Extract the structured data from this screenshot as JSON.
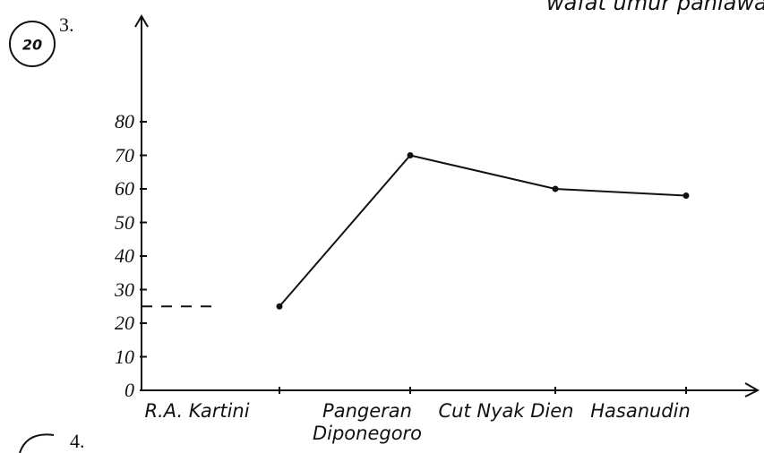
{
  "question_top": "3.",
  "score": "20",
  "question_bottom": "4.",
  "header_fragment": "wafat umur pahlawan",
  "chart_data": {
    "type": "line",
    "categories": [
      "R.A. Kartini",
      "Pangeran Diponegoro",
      "Cut Nyak Dien",
      "Hasanudin"
    ],
    "values": [
      25,
      70,
      60,
      58
    ],
    "color": "#111111",
    "ylim": [
      0,
      80
    ],
    "yticks": [
      0,
      10,
      20,
      30,
      40,
      50,
      60,
      70,
      80
    ]
  }
}
